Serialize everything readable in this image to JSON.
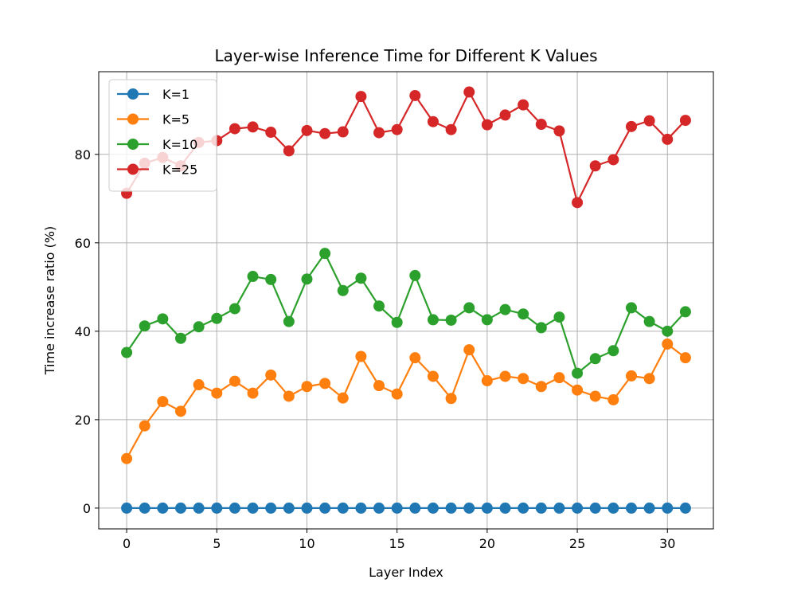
{
  "chart_data": {
    "type": "line",
    "title": "Layer-wise Inference Time for Different K Values",
    "xlabel": "Layer Index",
    "ylabel": "Time increase ratio (%)",
    "xlim": [
      -1.55,
      32.55
    ],
    "ylim": [
      -4.7,
      98.7
    ],
    "xticks": [
      0,
      5,
      10,
      15,
      20,
      25,
      30
    ],
    "yticks": [
      0,
      20,
      40,
      60,
      80
    ],
    "grid": true,
    "legend_position": "top-left",
    "x": [
      0,
      1,
      2,
      3,
      4,
      5,
      6,
      7,
      8,
      9,
      10,
      11,
      12,
      13,
      14,
      15,
      16,
      17,
      18,
      19,
      20,
      21,
      22,
      23,
      24,
      25,
      26,
      27,
      28,
      29,
      30,
      31
    ],
    "series": [
      {
        "name": "K=1",
        "color": "#1f77b4",
        "values": [
          0,
          0,
          0,
          0,
          0,
          0,
          0,
          0,
          0,
          0,
          0,
          0,
          0,
          0,
          0,
          0,
          0,
          0,
          0,
          0,
          0,
          0,
          0,
          0,
          0,
          0,
          0,
          0,
          0,
          0,
          0,
          0
        ]
      },
      {
        "name": "K=5",
        "color": "#ff7f0e",
        "values": [
          11.2,
          18.6,
          24.1,
          21.9,
          27.9,
          26.0,
          28.7,
          26.0,
          30.1,
          25.3,
          27.5,
          28.2,
          24.9,
          34.3,
          27.7,
          25.8,
          34.0,
          29.8,
          24.8,
          35.8,
          28.8,
          29.8,
          29.3,
          27.5,
          29.5,
          26.7,
          25.3,
          24.5,
          29.9,
          29.3,
          37.1,
          34.0
        ]
      },
      {
        "name": "K=10",
        "color": "#2ca02c",
        "values": [
          35.2,
          41.2,
          42.8,
          38.4,
          41.0,
          42.9,
          45.1,
          52.4,
          51.7,
          42.2,
          51.8,
          57.6,
          49.2,
          52.0,
          45.7,
          42.0,
          52.6,
          42.6,
          42.5,
          45.3,
          42.6,
          44.9,
          43.9,
          40.8,
          43.2,
          30.5,
          33.8,
          35.6,
          45.3,
          42.2,
          40.0,
          44.4
        ]
      },
      {
        "name": "K=25",
        "color": "#d62728",
        "values": [
          71.2,
          78.0,
          79.3,
          77.4,
          82.7,
          83.1,
          85.8,
          86.2,
          85.0,
          80.8,
          85.4,
          84.7,
          85.1,
          93.1,
          84.9,
          85.6,
          93.3,
          87.4,
          85.6,
          94.1,
          86.7,
          88.9,
          91.2,
          86.8,
          85.3,
          69.1,
          77.4,
          78.8,
          86.3,
          87.6,
          83.4,
          87.7
        ]
      }
    ]
  }
}
